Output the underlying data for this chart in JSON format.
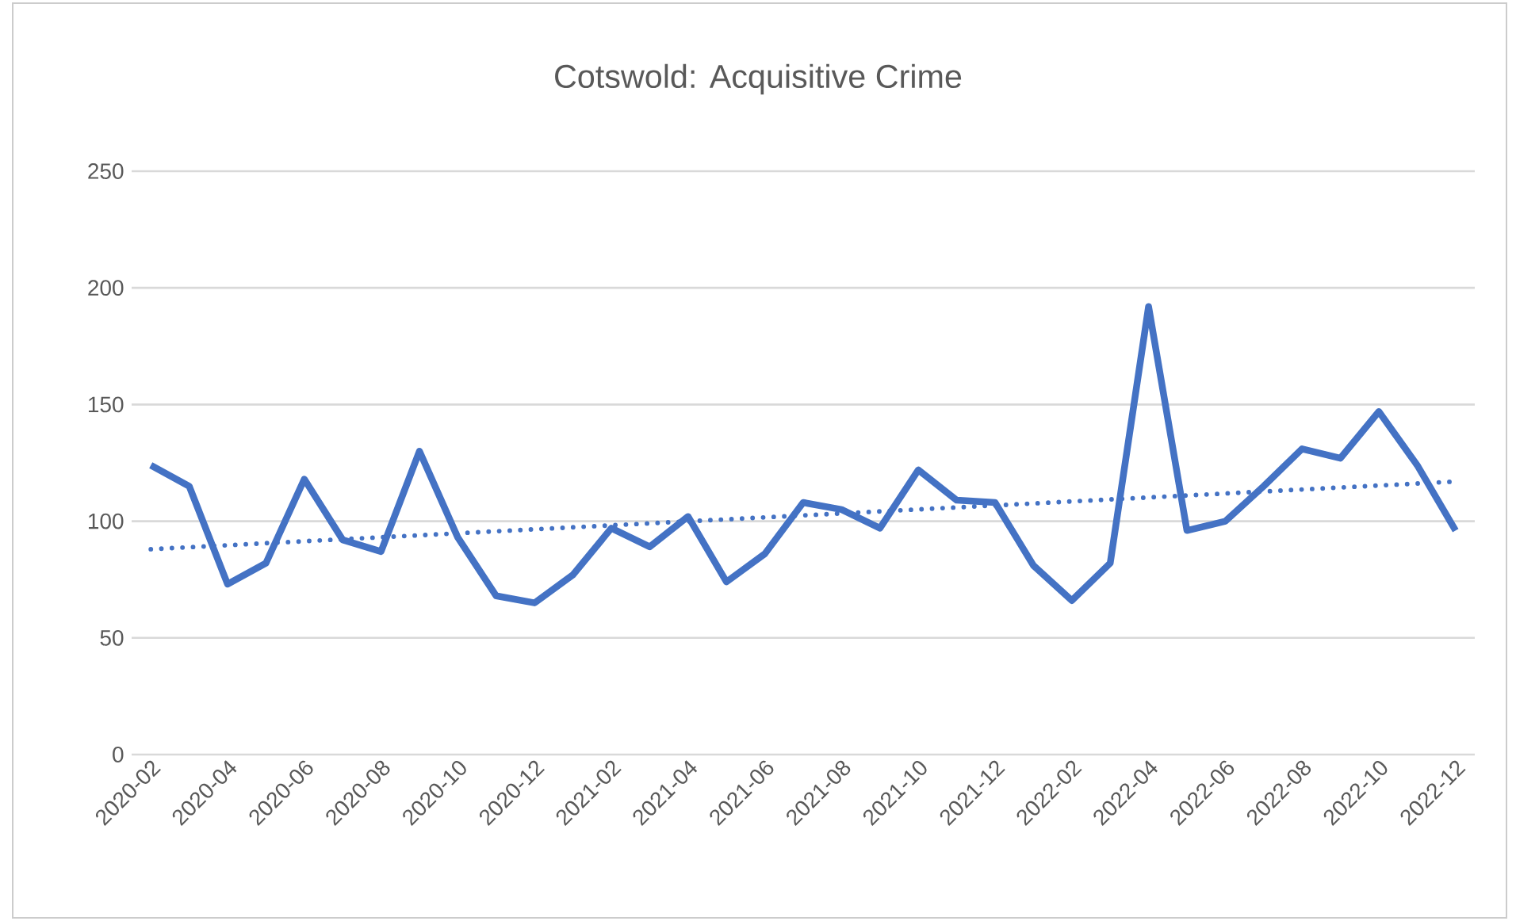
{
  "chart_data": {
    "type": "line",
    "title": "Cotswold: Acquisitive Crime",
    "x": [
      "2020-02",
      "2020-03",
      "2020-04",
      "2020-05",
      "2020-06",
      "2020-07",
      "2020-08",
      "2020-09",
      "2020-10",
      "2020-11",
      "2020-12",
      "2021-01",
      "2021-02",
      "2021-03",
      "2021-04",
      "2021-05",
      "2021-06",
      "2021-07",
      "2021-08",
      "2021-09",
      "2021-10",
      "2021-11",
      "2021-12",
      "2022-01",
      "2022-02",
      "2022-03",
      "2022-04",
      "2022-05",
      "2022-06",
      "2022-07",
      "2022-08",
      "2022-09",
      "2022-10",
      "2022-11",
      "2022-12"
    ],
    "series": [
      {
        "color": "#4472c4",
        "line_style": "solid",
        "values": [
          124,
          115,
          73,
          82,
          118,
          92,
          87,
          130,
          93,
          68,
          65,
          77,
          97,
          89,
          102,
          74,
          86,
          108,
          105,
          97,
          122,
          109,
          108,
          81,
          66,
          82,
          192,
          96,
          100,
          115,
          131,
          127,
          147,
          124,
          96
        ]
      },
      {
        "color": "#4472c4",
        "line_style": "dotted",
        "x": [
          "2020-02",
          "2022-12"
        ],
        "values": [
          88,
          117
        ]
      }
    ],
    "xlim": [
      "2020-01-16",
      "2022-12-16"
    ],
    "xticks": [
      "2020-02",
      "2020-04",
      "2020-06",
      "2020-08",
      "2020-10",
      "2020-12",
      "2021-02",
      "2021-04",
      "2021-06",
      "2021-08",
      "2021-10",
      "2021-12",
      "2022-02",
      "2022-04",
      "2022-06",
      "2022-08",
      "2022-10",
      "2022-12"
    ],
    "ylim": [
      0,
      250
    ],
    "yticks": [
      0,
      50,
      100,
      150,
      200,
      250
    ],
    "grid": "y",
    "marker": "none"
  }
}
